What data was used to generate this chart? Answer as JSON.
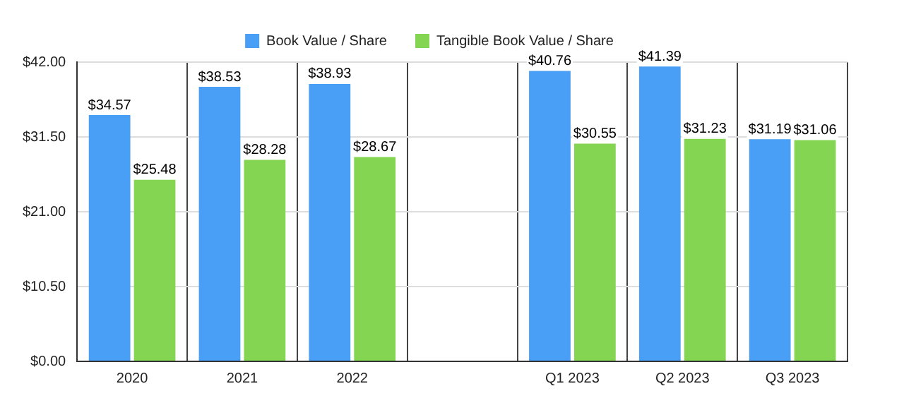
{
  "chart_data": {
    "type": "bar",
    "categories": [
      "2020",
      "2021",
      "2022",
      null,
      "Q1 2023",
      "Q2 2023",
      "Q3 2023"
    ],
    "series": [
      {
        "name": "Book Value / Share",
        "color": "#499ff5",
        "values": [
          34.57,
          38.53,
          38.93,
          null,
          40.76,
          41.39,
          31.19
        ],
        "value_labels": [
          "$34.57",
          "$38.53",
          "$38.93",
          null,
          "$40.76",
          "$41.39",
          "$31.19"
        ]
      },
      {
        "name": "Tangible Book Value / Share",
        "color": "#84d551",
        "values": [
          25.48,
          28.28,
          28.67,
          null,
          30.55,
          31.23,
          31.06
        ],
        "value_labels": [
          "$25.48",
          "$28.28",
          "$28.67",
          null,
          "$30.55",
          "$31.23",
          "$31.06"
        ]
      }
    ],
    "ylim": [
      0,
      42
    ],
    "yticks": [
      {
        "value": 0,
        "label": "$0.00"
      },
      {
        "value": 10.5,
        "label": "$10.50"
      },
      {
        "value": 21,
        "label": "$21.00"
      },
      {
        "value": 31.5,
        "label": "$31.50"
      },
      {
        "value": 42,
        "label": "$42.00"
      }
    ],
    "grid": true,
    "legend": "top"
  }
}
